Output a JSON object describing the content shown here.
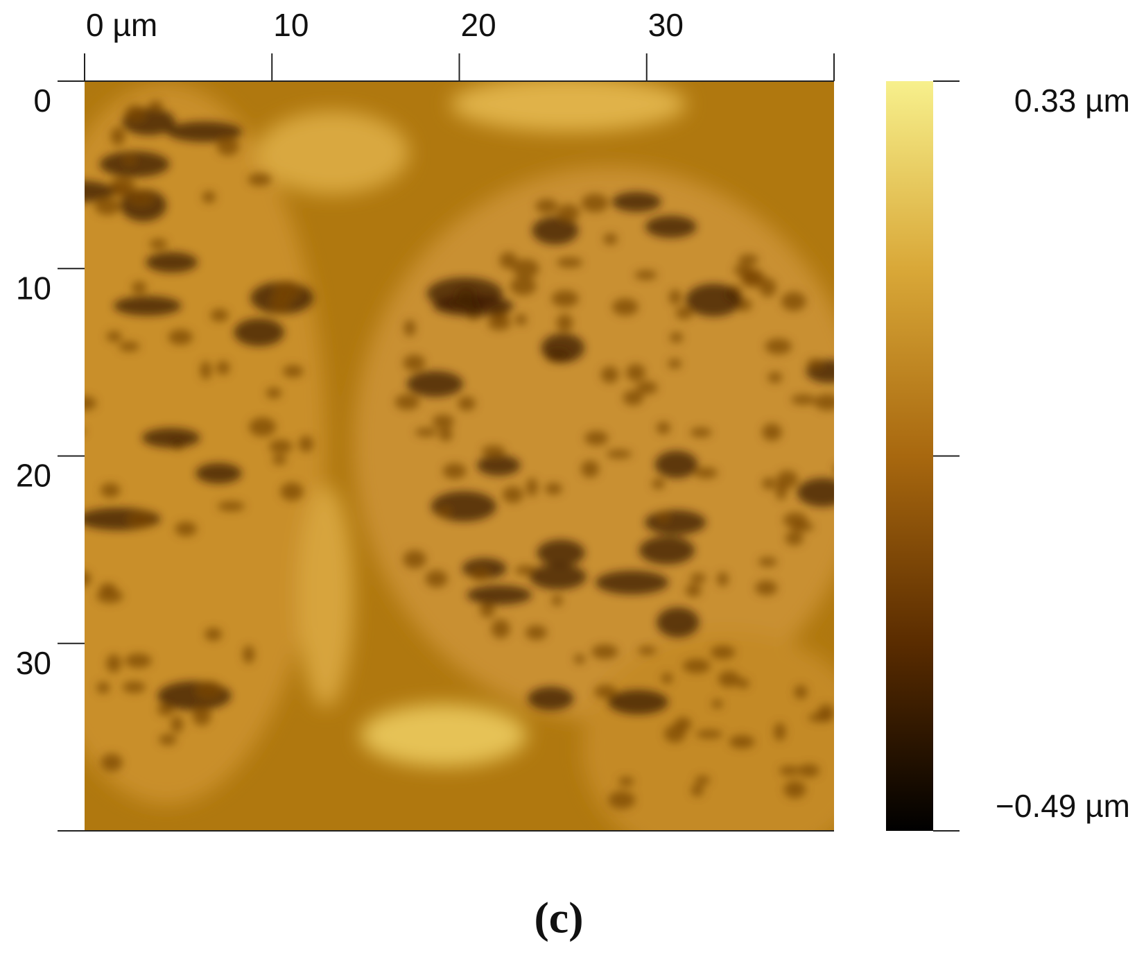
{
  "chart_data": {
    "type": "image",
    "xlim": [
      0,
      40
    ],
    "ylim": [
      0,
      40
    ],
    "xticks": [
      {
        "value": 0,
        "label": "0 µm"
      },
      10,
      20,
      30
    ],
    "yticks": [
      0,
      10,
      20,
      30
    ],
    "clim": [
      -0.49,
      0.33
    ],
    "cticks": [
      {
        "value": 0.33,
        "label": "0.33 µm"
      },
      {
        "value": -0.49,
        "label": "−0.49 µm"
      }
    ],
    "colormap": [
      "#000000",
      "#5a2c00",
      "#a8680f",
      "#d9a838",
      "#f7f08c"
    ],
    "caption": "(c)"
  }
}
